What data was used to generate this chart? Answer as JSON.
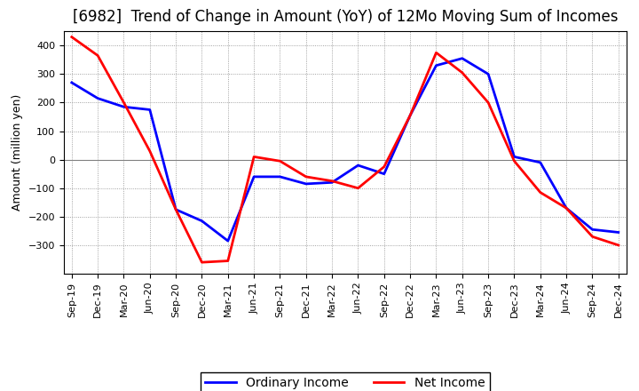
{
  "title": "[6982]  Trend of Change in Amount (YoY) of 12Mo Moving Sum of Incomes",
  "ylabel": "Amount (million yen)",
  "x_labels": [
    "Sep-19",
    "Dec-19",
    "Mar-20",
    "Jun-20",
    "Sep-20",
    "Dec-20",
    "Mar-21",
    "Jun-21",
    "Sep-21",
    "Dec-21",
    "Mar-22",
    "Jun-22",
    "Sep-22",
    "Dec-22",
    "Mar-23",
    "Jun-23",
    "Sep-23",
    "Dec-23",
    "Mar-24",
    "Jun-24",
    "Sep-24",
    "Dec-24"
  ],
  "ordinary_income": [
    270,
    215,
    185,
    175,
    -175,
    -215,
    -285,
    -60,
    -60,
    -85,
    -80,
    -20,
    -50,
    155,
    330,
    355,
    300,
    10,
    -10,
    -170,
    -245,
    -255
  ],
  "net_income": [
    430,
    365,
    200,
    30,
    -175,
    -360,
    -355,
    10,
    -5,
    -60,
    -75,
    -100,
    -25,
    155,
    375,
    305,
    200,
    -5,
    -115,
    -170,
    -270,
    -300
  ],
  "ordinary_income_color": "#0000ff",
  "net_income_color": "#ff0000",
  "background_color": "#ffffff",
  "grid_color": "#888888",
  "ylim": [
    -400,
    450
  ],
  "yticks": [
    -300,
    -200,
    -100,
    0,
    100,
    200,
    300,
    400
  ],
  "legend_labels": [
    "Ordinary Income",
    "Net Income"
  ],
  "line_width": 2.0,
  "title_fontsize": 12,
  "label_fontsize": 9,
  "tick_fontsize": 8
}
